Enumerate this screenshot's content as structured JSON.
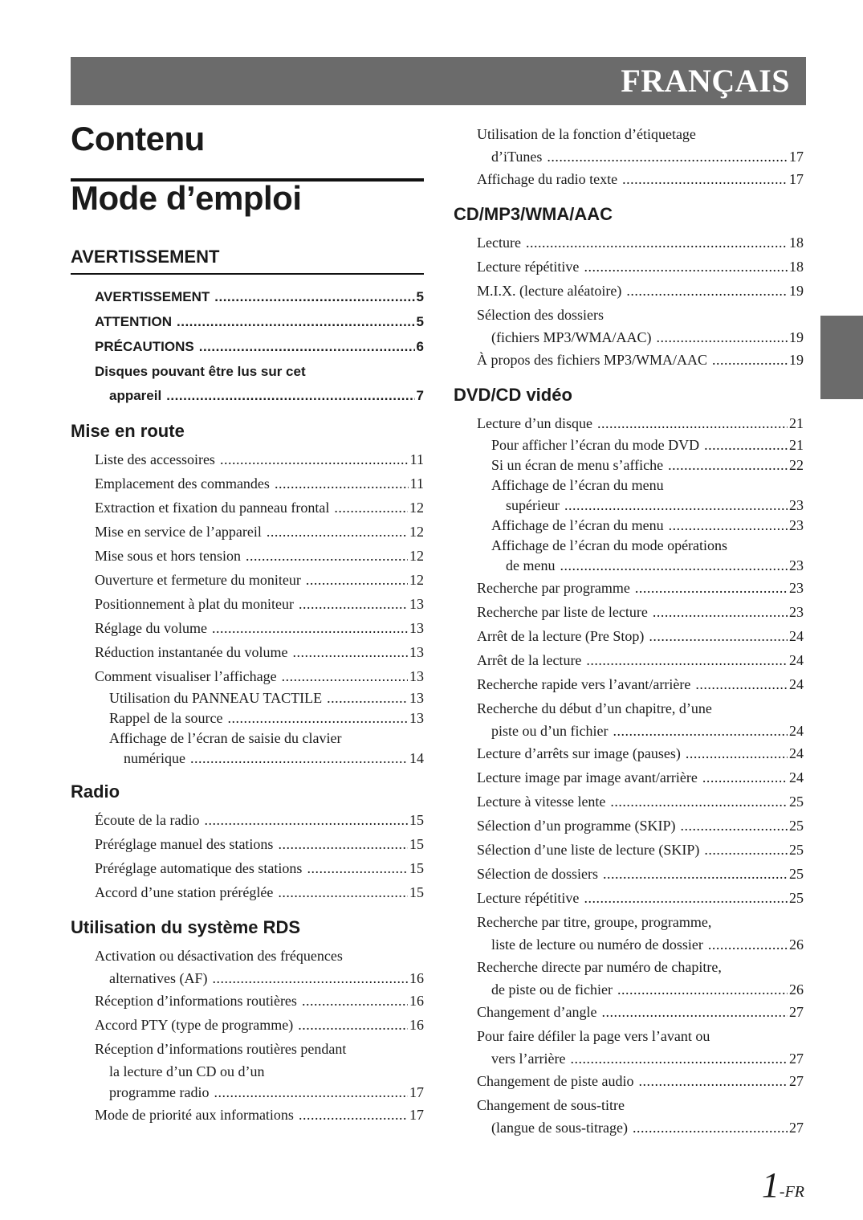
{
  "header": {
    "language": "FRANÇAIS",
    "band_color": "#6b6b6b"
  },
  "title": "Contenu",
  "subtitle": "Mode d’emploi",
  "left_column": [
    {
      "heading": "AVERTISSEMENT",
      "rule": true,
      "bold": true,
      "entries": [
        {
          "lines": [
            "AVERTISSEMENT"
          ],
          "page": "5",
          "level": 0
        },
        {
          "lines": [
            "ATTENTION"
          ],
          "page": "5",
          "level": 0
        },
        {
          "lines": [
            "PRÉCAUTIONS"
          ],
          "page": "6",
          "level": 0
        },
        {
          "lines": [
            "Disques pouvant être lus sur cet",
            "appareil"
          ],
          "page": "7",
          "level": 0
        }
      ]
    },
    {
      "heading": "Mise en route",
      "entries": [
        {
          "lines": [
            "Liste des accessoires"
          ],
          "page": "11",
          "level": 0
        },
        {
          "lines": [
            "Emplacement des commandes"
          ],
          "page": "11",
          "level": 0
        },
        {
          "lines": [
            "Extraction et fixation du panneau frontal"
          ],
          "page": "12",
          "level": 0
        },
        {
          "lines": [
            "Mise en service de l’appareil"
          ],
          "page": "12",
          "level": 0
        },
        {
          "lines": [
            "Mise sous et hors tension"
          ],
          "page": "12",
          "level": 0
        },
        {
          "lines": [
            "Ouverture et fermeture du moniteur"
          ],
          "page": "12",
          "level": 0
        },
        {
          "lines": [
            "Positionnement à plat du moniteur"
          ],
          "page": "13",
          "level": 0
        },
        {
          "lines": [
            "Réglage du volume"
          ],
          "page": "13",
          "level": 0
        },
        {
          "lines": [
            "Réduction instantanée du volume"
          ],
          "page": "13",
          "level": 0
        },
        {
          "lines": [
            "Comment visualiser l’affichage"
          ],
          "page": "13",
          "level": 0
        },
        {
          "lines": [
            "Utilisation du PANNEAU TACTILE"
          ],
          "page": "13",
          "level": 1
        },
        {
          "lines": [
            "Rappel de la source"
          ],
          "page": "13",
          "level": 1
        },
        {
          "lines": [
            "Affichage de l’écran de saisie du clavier",
            "numérique"
          ],
          "page": "14",
          "level": 1
        }
      ]
    },
    {
      "heading": "Radio",
      "entries": [
        {
          "lines": [
            "Écoute de la radio"
          ],
          "page": "15",
          "level": 0
        },
        {
          "lines": [
            "Préréglage manuel des stations"
          ],
          "page": "15",
          "level": 0
        },
        {
          "lines": [
            "Préréglage automatique des stations"
          ],
          "page": "15",
          "level": 0
        },
        {
          "lines": [
            "Accord d’une station préréglée"
          ],
          "page": "15",
          "level": 0
        }
      ]
    },
    {
      "heading": "Utilisation du système RDS",
      "entries": [
        {
          "lines": [
            "Activation ou désactivation des fréquences",
            "alternatives (AF)"
          ],
          "page": "16",
          "level": 0
        },
        {
          "lines": [
            "Réception d’informations routières"
          ],
          "page": "16",
          "level": 0
        },
        {
          "lines": [
            "Accord PTY (type de programme)"
          ],
          "page": "16",
          "level": 0
        },
        {
          "lines": [
            "Réception d’informations routières pendant",
            "la lecture d’un CD ou d’un",
            "programme radio"
          ],
          "page": "17",
          "level": 0
        },
        {
          "lines": [
            "Mode de priorité aux informations"
          ],
          "page": "17",
          "level": 0
        }
      ]
    }
  ],
  "right_column": [
    {
      "heading": "",
      "entries": [
        {
          "lines": [
            "Utilisation de la fonction d’étiquetage",
            "d’iTunes"
          ],
          "page": "17",
          "level": 0
        },
        {
          "lines": [
            "Affichage du radio texte"
          ],
          "page": "17",
          "level": 0
        }
      ]
    },
    {
      "heading": "CD/MP3/WMA/AAC",
      "entries": [
        {
          "lines": [
            "Lecture"
          ],
          "page": "18",
          "level": 0
        },
        {
          "lines": [
            "Lecture répétitive"
          ],
          "page": "18",
          "level": 0
        },
        {
          "lines": [
            "M.I.X. (lecture aléatoire)"
          ],
          "page": "19",
          "level": 0
        },
        {
          "lines": [
            "Sélection des dossiers",
            "(fichiers MP3/WMA/AAC)"
          ],
          "page": "19",
          "level": 0
        },
        {
          "lines": [
            "À propos des fichiers MP3/WMA/AAC"
          ],
          "page": "19",
          "level": 0
        }
      ]
    },
    {
      "heading": "DVD/CD vidéo",
      "entries": [
        {
          "lines": [
            "Lecture d’un disque"
          ],
          "page": "21",
          "level": 0
        },
        {
          "lines": [
            "Pour afficher l’écran du mode DVD"
          ],
          "page": "21",
          "level": 1
        },
        {
          "lines": [
            "Si un écran de menu s’affiche"
          ],
          "page": "22",
          "level": 1
        },
        {
          "lines": [
            "Affichage de l’écran du menu",
            "supérieur"
          ],
          "page": "23",
          "level": 1
        },
        {
          "lines": [
            "Affichage de l’écran du menu"
          ],
          "page": "23",
          "level": 1
        },
        {
          "lines": [
            "Affichage de l’écran du mode opérations",
            "de menu"
          ],
          "page": "23",
          "level": 1
        },
        {
          "lines": [
            "Recherche par programme"
          ],
          "page": "23",
          "level": 0
        },
        {
          "lines": [
            "Recherche par liste de lecture"
          ],
          "page": "23",
          "level": 0
        },
        {
          "lines": [
            "Arrêt de la lecture (Pre Stop)"
          ],
          "page": "24",
          "level": 0
        },
        {
          "lines": [
            "Arrêt de la lecture"
          ],
          "page": "24",
          "level": 0
        },
        {
          "lines": [
            "Recherche rapide vers l’avant/arrière"
          ],
          "page": "24",
          "level": 0
        },
        {
          "lines": [
            "Recherche du début d’un chapitre, d’une",
            "piste ou d’un fichier"
          ],
          "page": "24",
          "level": 0
        },
        {
          "lines": [
            "Lecture d’arrêts sur image (pauses)"
          ],
          "page": "24",
          "level": 0
        },
        {
          "lines": [
            "Lecture image par image avant/arrière"
          ],
          "page": "24",
          "level": 0
        },
        {
          "lines": [
            "Lecture à vitesse lente"
          ],
          "page": "25",
          "level": 0
        },
        {
          "lines": [
            "Sélection d’un programme (SKIP)"
          ],
          "page": "25",
          "level": 0
        },
        {
          "lines": [
            "Sélection d’une liste de lecture (SKIP)"
          ],
          "page": "25",
          "level": 0
        },
        {
          "lines": [
            "Sélection de dossiers"
          ],
          "page": "25",
          "level": 0
        },
        {
          "lines": [
            "Lecture répétitive"
          ],
          "page": "25",
          "level": 0
        },
        {
          "lines": [
            "Recherche par titre, groupe, programme,",
            "liste de lecture ou numéro de dossier"
          ],
          "page": "26",
          "level": 0
        },
        {
          "lines": [
            "Recherche directe par numéro de chapitre,",
            "de piste ou de fichier"
          ],
          "page": "26",
          "level": 0
        },
        {
          "lines": [
            "Changement d’angle"
          ],
          "page": "27",
          "level": 0
        },
        {
          "lines": [
            "Pour faire défiler la page vers l’avant ou",
            "vers l’arrière"
          ],
          "page": "27",
          "level": 0
        },
        {
          "lines": [
            "Changement de piste audio"
          ],
          "page": "27",
          "level": 0
        },
        {
          "lines": [
            "Changement de sous-titre",
            "(langue de sous-titrage)"
          ],
          "page": "27",
          "level": 0
        }
      ]
    }
  ],
  "footer": {
    "page_number": "1",
    "suffix": "-FR"
  }
}
